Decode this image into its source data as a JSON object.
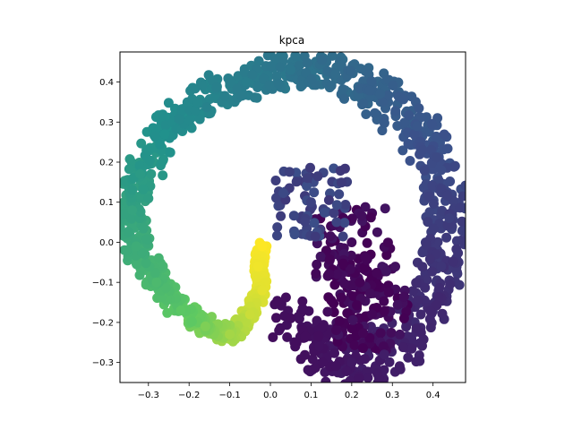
{
  "chart_data": {
    "type": "scatter",
    "title": "kpca",
    "xlabel": "",
    "ylabel": "",
    "xlim": [
      -0.37,
      0.48
    ],
    "ylim": [
      -0.35,
      0.475
    ],
    "xticks": [
      -0.3,
      -0.2,
      -0.1,
      0.0,
      0.1,
      0.2,
      0.3,
      0.4
    ],
    "xtick_labels": [
      "−0.3",
      "−0.2",
      "−0.1",
      "0.0",
      "0.1",
      "0.2",
      "0.3",
      "0.4"
    ],
    "yticks": [
      -0.3,
      -0.2,
      -0.1,
      0.0,
      0.1,
      0.2,
      0.3,
      0.4
    ],
    "ytick_labels": [
      "−0.3",
      "−0.2",
      "−0.1",
      "0.0",
      "0.1",
      "0.2",
      "0.3",
      "0.4"
    ],
    "grid": false,
    "colormap": "viridis",
    "colormap_stops": [
      "#440154",
      "#3b528b",
      "#21918c",
      "#5ec962",
      "#fde725"
    ],
    "description_points": "approximate spiral-shaped point cloud; color t parameter 0 (purple) to 1 (yellow)",
    "points": [
      {
        "x": -0.02,
        "y": -0.01,
        "t": 1.0
      },
      {
        "x": -0.03,
        "y": -0.06,
        "t": 0.98
      },
      {
        "x": -0.02,
        "y": -0.12,
        "t": 0.96
      },
      {
        "x": -0.05,
        "y": -0.18,
        "t": 0.92
      },
      {
        "x": -0.1,
        "y": -0.23,
        "t": 0.86
      },
      {
        "x": -0.16,
        "y": -0.21,
        "t": 0.8
      },
      {
        "x": -0.22,
        "y": -0.17,
        "t": 0.74
      },
      {
        "x": -0.28,
        "y": -0.1,
        "t": 0.68
      },
      {
        "x": -0.33,
        "y": -0.01,
        "t": 0.62
      },
      {
        "x": -0.34,
        "y": 0.08,
        "t": 0.58
      },
      {
        "x": -0.32,
        "y": 0.17,
        "t": 0.54
      },
      {
        "x": -0.26,
        "y": 0.27,
        "t": 0.5
      },
      {
        "x": -0.18,
        "y": 0.35,
        "t": 0.46
      },
      {
        "x": -0.06,
        "y": 0.4,
        "t": 0.42
      },
      {
        "x": 0.05,
        "y": 0.43,
        "t": 0.39
      },
      {
        "x": 0.16,
        "y": 0.42,
        "t": 0.35
      },
      {
        "x": 0.27,
        "y": 0.37,
        "t": 0.31
      },
      {
        "x": 0.36,
        "y": 0.29,
        "t": 0.27
      },
      {
        "x": 0.42,
        "y": 0.18,
        "t": 0.23
      },
      {
        "x": 0.44,
        "y": 0.06,
        "t": 0.19
      },
      {
        "x": 0.42,
        "y": -0.06,
        "t": 0.16
      },
      {
        "x": 0.37,
        "y": -0.18,
        "t": 0.12
      },
      {
        "x": 0.28,
        "y": -0.28,
        "t": 0.09
      },
      {
        "x": 0.2,
        "y": -0.3,
        "t": 0.07
      },
      {
        "x": 0.12,
        "y": -0.26,
        "t": 0.05
      },
      {
        "x": 0.05,
        "y": -0.19,
        "t": 0.04
      },
      {
        "x": 0.22,
        "y": -0.1,
        "t": 0.01
      },
      {
        "x": 0.25,
        "y": -0.18,
        "t": 0.02
      },
      {
        "x": 0.2,
        "y": 0.0,
        "t": 0.03
      },
      {
        "x": 0.1,
        "y": 0.1,
        "t": 0.2
      }
    ]
  }
}
